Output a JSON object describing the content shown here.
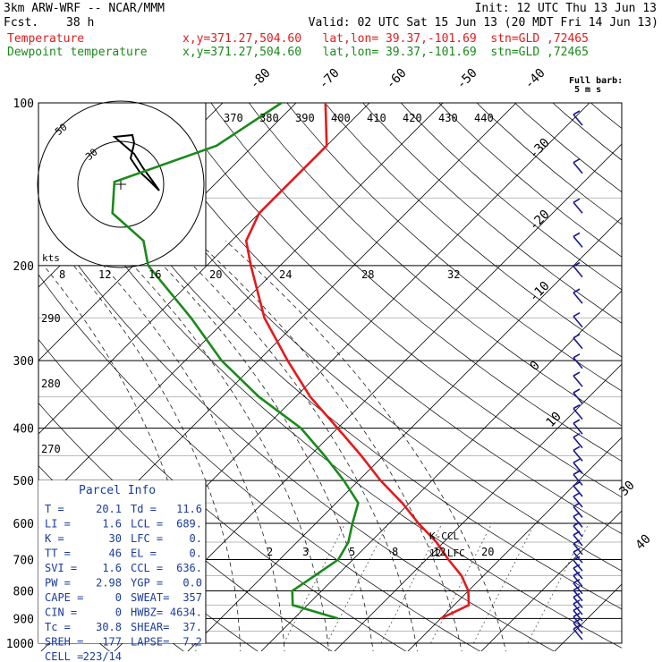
{
  "header": {
    "model": "3km ARW-WRF -- NCAR/MMM",
    "init": "Init: 12 UTC Thu 13 Jun 13",
    "fcst_label": "Fcst.",
    "fcst_value": "38 h",
    "valid": "Valid: 02 UTC Sat 15 Jun 13 (20 MDT Fri 14 Jun 13)",
    "temp_label": "Temperature",
    "temp_info": "x,y=371.27,504.60   lat,lon= 39.37,-101.69  stn=GLD ,72465",
    "dew_label": "Dewpoint temperature",
    "dew_info": "x,y=371.27,504.60   lat,lon= 39.37,-101.69  stn=GLD ,72465",
    "full_barb_1": "Full barb:",
    "full_barb_2": "5 m s"
  },
  "colors": {
    "temperature": "#e41a1c",
    "dewpoint": "#1a8a1a",
    "barbs": "#1a1a8c",
    "panel_text": "#1c3c9c"
  },
  "chart_data": {
    "type": "line",
    "title": "Skew-T log-P sounding",
    "pressure_levels": [
      100,
      200,
      300,
      400,
      500,
      600,
      700,
      800,
      900,
      1000
    ],
    "isotherm_labels": [
      "-80",
      "-70",
      "-60",
      "-50",
      "-40",
      "-30",
      "-20",
      "-10",
      "0",
      "10",
      "30",
      "40"
    ],
    "theta_labels": [
      "370",
      "380",
      "390",
      "400",
      "410",
      "420",
      "430",
      "440"
    ],
    "theta_left_labels": [
      "290",
      "280",
      "270"
    ],
    "mixing_ratio_labels": [
      "2",
      "3",
      "5",
      "8",
      "12",
      "20"
    ],
    "parcel_labels": [
      "K-CCL",
      "12-LFC"
    ],
    "series": [
      {
        "name": "Temperature",
        "p": [
          100,
          120,
          140,
          160,
          180,
          200,
          250,
          300,
          350,
          400,
          450,
          500,
          550,
          600,
          650,
          700,
          750,
          800,
          850,
          900
        ],
        "t": [
          -66,
          -60,
          -60,
          -60,
          -58,
          -54,
          -45,
          -36,
          -28,
          -20,
          -13,
          -7,
          -1,
          4,
          9,
          13,
          17,
          20,
          22,
          20
        ]
      },
      {
        "name": "Dewpoint temperature",
        "p": [
          100,
          120,
          140,
          160,
          180,
          200,
          250,
          300,
          350,
          400,
          450,
          500,
          550,
          600,
          650,
          700,
          750,
          800,
          850,
          900
        ],
        "t": [
          -72,
          -75,
          -84,
          -80,
          -72,
          -68,
          -55,
          -45,
          -35,
          -25,
          -18,
          -12,
          -7,
          -5,
          -3,
          -2,
          -3,
          -4,
          -2,
          6
        ]
      }
    ]
  },
  "hodograph": {
    "units": "kts",
    "ring_labels": [
      "50",
      "30"
    ],
    "ticks": [
      "8",
      "12",
      "16",
      "20",
      "24",
      "28",
      "32"
    ]
  },
  "parcel_info": {
    "title": "Parcel Info",
    "rows": [
      [
        "T  =",
        "20.1",
        "Td =",
        "11.6"
      ],
      [
        "LI =",
        "1.6",
        "LCL =",
        "689."
      ],
      [
        "K  =",
        "30",
        "LFC =",
        "0."
      ],
      [
        "TT =",
        "46",
        "EL =",
        "0."
      ],
      [
        "SVI =",
        "1.6",
        "CCL =",
        "636."
      ],
      [
        "PW =",
        "2.98",
        "YGP =",
        "0.0"
      ],
      [
        "CAPE =",
        "0",
        "SWEAT=",
        "357"
      ],
      [
        "CIN =",
        "0",
        "HWBZ=",
        "4634."
      ],
      [
        "Tc =",
        "30.8",
        "SHEAR=",
        "37."
      ],
      [
        "SREH =",
        "177",
        "LAPSE=",
        "7.2"
      ],
      [
        "CELL =",
        "223/14",
        "",
        ""
      ]
    ]
  }
}
